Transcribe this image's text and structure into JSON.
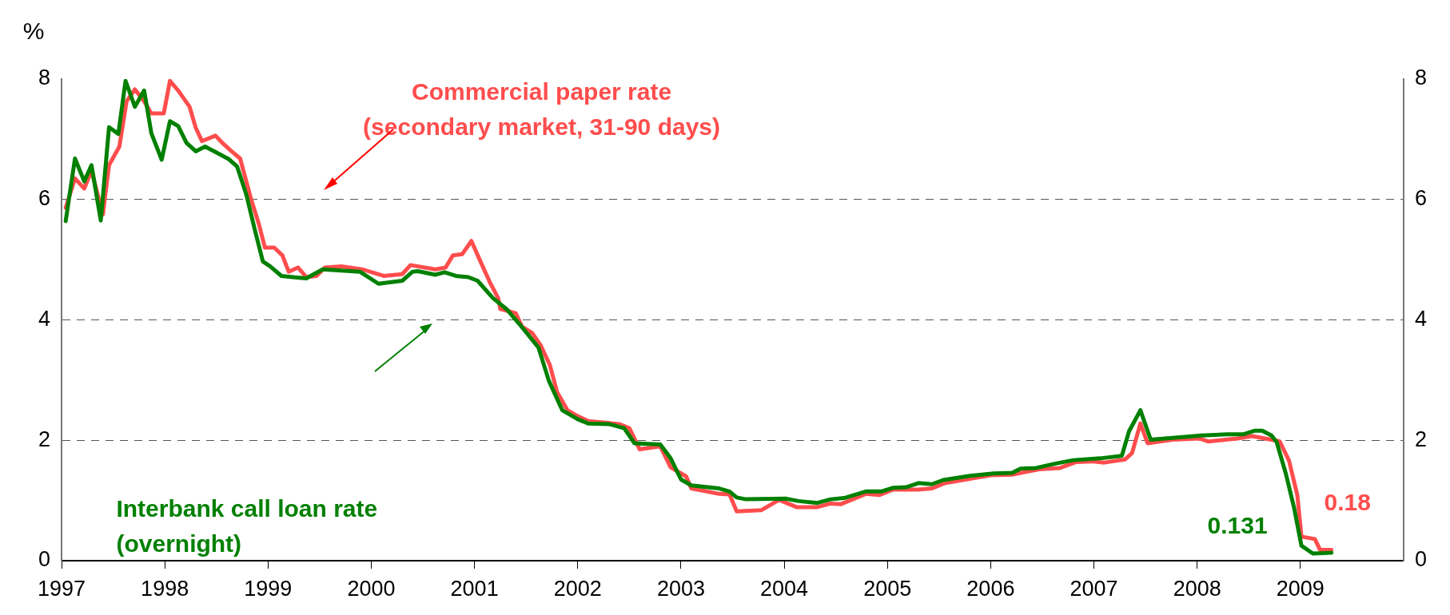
{
  "chart_data": {
    "type": "line",
    "ylabel": "%",
    "xlim": [
      1997,
      2010
    ],
    "xticks": [
      1997,
      1998,
      1999,
      2000,
      2001,
      2002,
      2003,
      2004,
      2005,
      2006,
      2007,
      2008,
      2009
    ],
    "ylim": [
      0,
      8
    ],
    "yticks": [
      0,
      2,
      4,
      6,
      8
    ],
    "y2lim": [
      0,
      8
    ],
    "y2ticks": [
      0,
      2,
      4,
      6,
      8
    ],
    "grid": "y",
    "legend": false,
    "line_style": "solid",
    "marker": "none",
    "series": [
      {
        "name": "Interbank call loan rate\n(overnight)",
        "color": "#008000",
        "x": [
          1997.04,
          1997.13,
          1997.22,
          1997.29,
          1997.38,
          1997.46,
          1997.55,
          1997.62,
          1997.71,
          1997.8,
          1997.87,
          1997.97,
          1998.05,
          1998.13,
          1998.21,
          1998.3,
          1998.39,
          1998.49,
          1998.62,
          1998.7,
          1998.79,
          1998.87,
          1998.95,
          1999.02,
          1999.13,
          1999.24,
          1999.37,
          1999.53,
          1999.71,
          1999.89,
          2000.07,
          2000.3,
          2000.4,
          2000.45,
          2000.62,
          2000.71,
          2000.82,
          2000.94,
          2001.03,
          2001.18,
          2001.31,
          2001.44,
          2001.62,
          2001.72,
          2001.85,
          2002.0,
          2002.1,
          2002.3,
          2002.45,
          2002.55,
          2002.8,
          2002.9,
          2003.0,
          2003.1,
          2003.37,
          2003.47,
          2003.54,
          2003.63,
          2004.02,
          2004.14,
          2004.32,
          2004.45,
          2004.58,
          2004.79,
          2004.94,
          2005.05,
          2005.18,
          2005.3,
          2005.43,
          2005.54,
          2005.8,
          2006.03,
          2006.21,
          2006.29,
          2006.44,
          2006.62,
          2006.8,
          2007.06,
          2007.27,
          2007.34,
          2007.45,
          2007.55,
          2007.76,
          2008.04,
          2008.3,
          2008.45,
          2008.56,
          2008.63,
          2008.72,
          2008.77,
          2008.86,
          2008.94,
          2009.01,
          2009.12,
          2009.3
        ],
        "values": [
          5.64,
          6.68,
          6.3,
          6.57,
          5.65,
          7.2,
          7.09,
          7.97,
          7.54,
          7.81,
          7.1,
          6.66,
          7.3,
          7.22,
          6.94,
          6.8,
          6.88,
          6.79,
          6.67,
          6.55,
          6.08,
          5.51,
          4.97,
          4.89,
          4.73,
          4.71,
          4.69,
          4.84,
          4.82,
          4.8,
          4.6,
          4.65,
          4.8,
          4.81,
          4.75,
          4.79,
          4.73,
          4.71,
          4.65,
          4.36,
          4.18,
          3.92,
          3.54,
          2.99,
          2.5,
          2.35,
          2.28,
          2.27,
          2.2,
          1.95,
          1.93,
          1.7,
          1.35,
          1.25,
          1.2,
          1.15,
          1.05,
          1.02,
          1.03,
          0.99,
          0.96,
          1.02,
          1.04,
          1.15,
          1.15,
          1.21,
          1.22,
          1.29,
          1.27,
          1.34,
          1.41,
          1.45,
          1.46,
          1.53,
          1.54,
          1.61,
          1.67,
          1.7,
          1.74,
          2.15,
          2.5,
          2.01,
          2.04,
          2.08,
          2.1,
          2.1,
          2.16,
          2.16,
          2.08,
          1.97,
          1.44,
          0.87,
          0.25,
          0.12,
          0.131
        ]
      },
      {
        "name": "Commercial paper rate\n(secondary market, 31-90 days)",
        "color": "#ff4d4d",
        "x": [
          1997.04,
          1997.13,
          1997.22,
          1997.29,
          1997.4,
          1997.46,
          1997.56,
          1997.63,
          1997.71,
          1997.8,
          1997.87,
          1997.99,
          1998.05,
          1998.13,
          1998.24,
          1998.3,
          1998.36,
          1998.49,
          1998.57,
          1998.64,
          1998.73,
          1998.83,
          1998.91,
          1998.97,
          1999.06,
          1999.14,
          1999.2,
          1999.29,
          1999.37,
          1999.47,
          1999.55,
          1999.71,
          1999.91,
          2000.12,
          2000.3,
          2000.38,
          2000.62,
          2000.72,
          2000.79,
          2000.88,
          2000.97,
          2001.05,
          2001.15,
          2001.23,
          2001.25,
          2001.4,
          2001.46,
          2001.56,
          2001.64,
          2001.73,
          2001.8,
          2001.9,
          2002.0,
          2002.1,
          2002.4,
          2002.5,
          2002.6,
          2002.8,
          2002.9,
          2003.05,
          2003.1,
          2003.37,
          2003.47,
          2003.54,
          2003.78,
          2003.95,
          2004.12,
          2004.32,
          2004.45,
          2004.55,
          2004.79,
          2004.92,
          2005.05,
          2005.3,
          2005.43,
          2005.56,
          2006.0,
          2006.21,
          2006.47,
          2006.67,
          2006.83,
          2006.98,
          2007.1,
          2007.3,
          2007.37,
          2007.45,
          2007.52,
          2007.76,
          2008.02,
          2008.11,
          2008.39,
          2008.53,
          2008.72,
          2008.8,
          2008.89,
          2008.97,
          2009.01,
          2009.14,
          2009.19,
          2009.3
        ],
        "values": [
          5.86,
          6.35,
          6.18,
          6.48,
          5.75,
          6.57,
          6.88,
          7.63,
          7.83,
          7.63,
          7.43,
          7.43,
          7.97,
          7.81,
          7.54,
          7.19,
          6.97,
          7.06,
          6.92,
          6.81,
          6.68,
          6.04,
          5.6,
          5.2,
          5.2,
          5.07,
          4.8,
          4.87,
          4.71,
          4.73,
          4.87,
          4.89,
          4.84,
          4.73,
          4.76,
          4.91,
          4.84,
          4.87,
          5.07,
          5.09,
          5.31,
          5.0,
          4.62,
          4.36,
          4.18,
          4.11,
          3.89,
          3.78,
          3.58,
          3.25,
          2.8,
          2.5,
          2.4,
          2.32,
          2.27,
          2.2,
          1.85,
          1.9,
          1.55,
          1.4,
          1.2,
          1.11,
          1.1,
          0.82,
          0.84,
          1.01,
          0.89,
          0.89,
          0.95,
          0.94,
          1.11,
          1.09,
          1.18,
          1.18,
          1.2,
          1.29,
          1.42,
          1.43,
          1.52,
          1.54,
          1.64,
          1.65,
          1.63,
          1.68,
          1.79,
          2.28,
          1.95,
          2.01,
          2.03,
          1.98,
          2.03,
          2.07,
          2.01,
          1.98,
          1.66,
          1.09,
          0.4,
          0.36,
          0.18,
          0.18
        ]
      }
    ],
    "annotations": [
      {
        "text": "0.131",
        "x": 2009.3,
        "y": 0.131
      },
      {
        "text": "0.18",
        "x": 2009.3,
        "y": 0.18
      }
    ]
  }
}
